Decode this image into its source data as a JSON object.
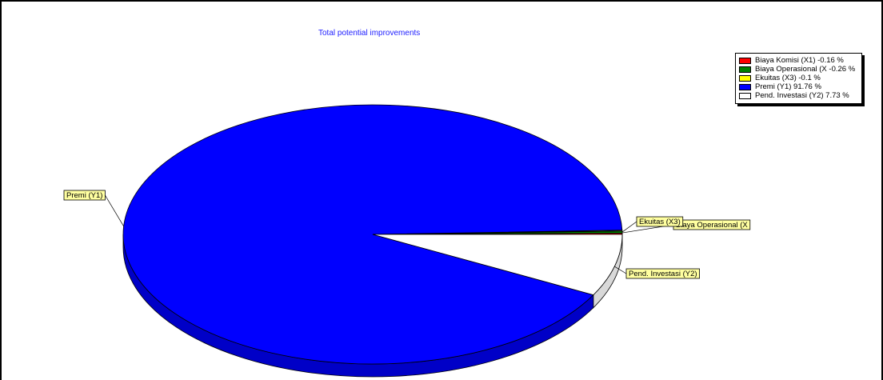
{
  "chart_data": {
    "type": "pie",
    "title": "Total potential improvements",
    "slices": [
      {
        "label": "Biaya Komisi (X1)",
        "legend": "Biaya Komisi (X1) -0.16 %",
        "value": 0.16,
        "color": "#ff0000"
      },
      {
        "label": "Biaya Operasional (X",
        "legend": "Biaya Operasional (X -0.26 %",
        "value": 0.26,
        "color": "#008000"
      },
      {
        "label": "Ekuitas (X3)",
        "legend": "Ekuitas (X3) -0.1 %",
        "value": 0.1,
        "color": "#ffff00"
      },
      {
        "label": "Premi (Y1)",
        "legend": "Premi (Y1) 91.76 %",
        "value": 91.76,
        "color": "#0000ff"
      },
      {
        "label": "Pend. Investasi (Y2)",
        "legend": "Pend. Investasi (Y2) 7.73 %",
        "value": 7.73,
        "color": "#ffffff"
      }
    ],
    "legend_position": "top-right",
    "style": "3d"
  }
}
